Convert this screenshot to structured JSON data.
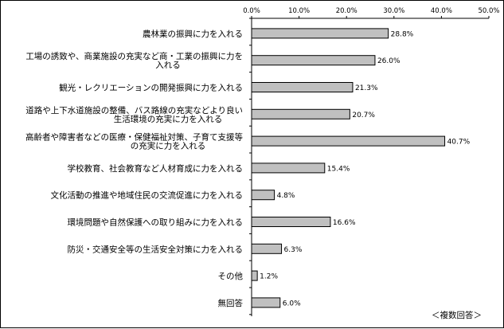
{
  "chart_data": {
    "type": "bar",
    "orientation": "horizontal",
    "categories": [
      [
        "農林業の振興に力を入れる"
      ],
      [
        "工場の誘致や、商業施設の充実など商・工業の振興に力を",
        "入れる"
      ],
      [
        "観光・レクリエーションの開発振興に力を入れる"
      ],
      [
        "道路や上下水道施設の整備、バス路線の充実などより良い",
        "生活環境の充実に力を入れる"
      ],
      [
        "高齢者や障害者などの医療・保健福祉対策、子育て支援等",
        "の充実に力を入れる"
      ],
      [
        "学校教育、社会教育など人材育成に力を入れる"
      ],
      [
        "文化活動の推進や地域住民の交流促進に力を入れる"
      ],
      [
        "環境問題や自然保護への取り組みに力を入れる"
      ],
      [
        "防災・交通安全等の生活安全対策に力を入れる"
      ],
      [
        "その他"
      ],
      [
        "無回答"
      ]
    ],
    "values": [
      28.8,
      26.0,
      21.3,
      20.7,
      40.7,
      15.4,
      4.8,
      16.6,
      6.3,
      1.2,
      6.0
    ],
    "value_labels": [
      "28.8%",
      "26.0%",
      "21.3%",
      "20.7%",
      "40.7%",
      "15.4%",
      "4.8%",
      "16.6%",
      "6.3%",
      "1.2%",
      "6.0%"
    ],
    "xlim": [
      0,
      50
    ],
    "ticks": [
      0,
      10,
      20,
      30,
      40,
      50
    ],
    "tick_labels": [
      "0.0%",
      "10.0%",
      "20.0%",
      "30.0%",
      "40.0%",
      "50.0%"
    ],
    "grid": false,
    "legend": "none",
    "note": "＜複数回答＞"
  },
  "colors": {
    "bar_fill": "#c0c0c0",
    "bar_stroke": "#000000",
    "axis": "#000000"
  }
}
